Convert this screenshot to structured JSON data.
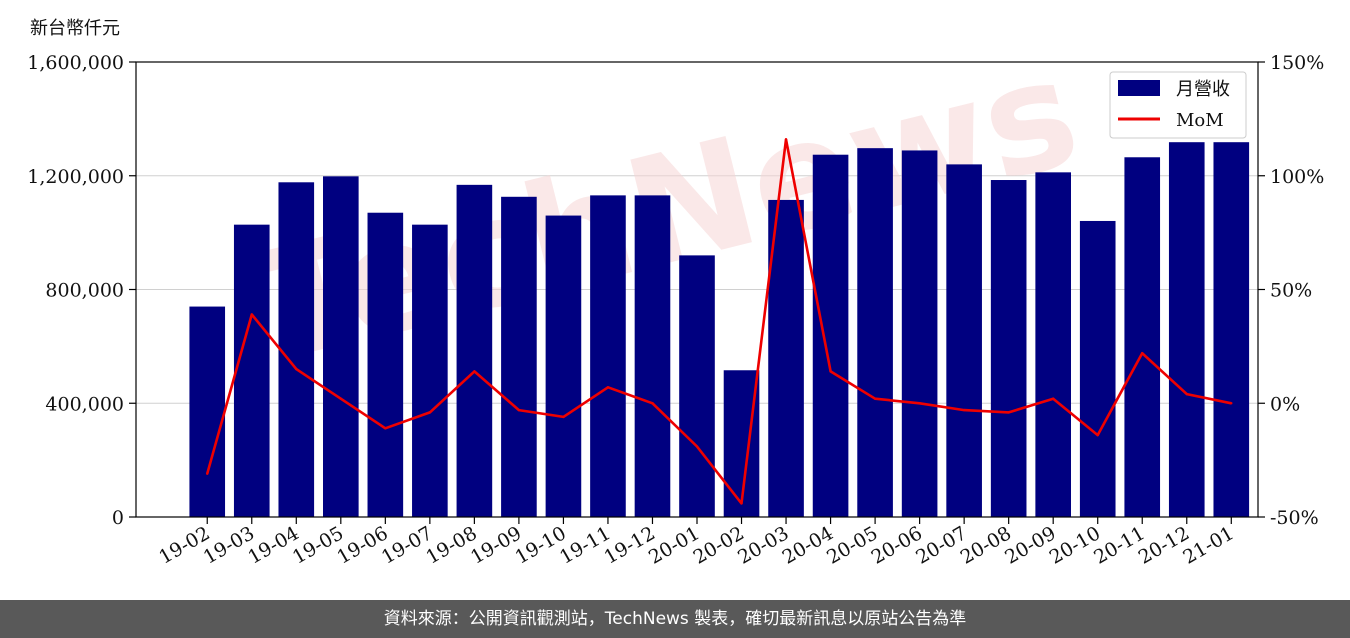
{
  "unit_label": "新台幣仟元",
  "footer": "資料來源：公開資訊觀測站，TechNews 製表，確切最新訊息以原站公告為準",
  "watermark": "TechNews",
  "colors": {
    "bar": "#000080",
    "line": "#ee0000",
    "grid": "#d0d0d0",
    "footer_bg": "#595959"
  },
  "chart_data": {
    "type": "bar+line",
    "categories": [
      "19-02",
      "19-03",
      "19-04",
      "19-05",
      "19-06",
      "19-07",
      "19-08",
      "19-09",
      "19-10",
      "19-11",
      "19-12",
      "20-01",
      "20-02",
      "20-03",
      "20-04",
      "20-05",
      "20-06",
      "20-07",
      "20-08",
      "20-09",
      "20-10",
      "20-11",
      "20-12",
      "21-01"
    ],
    "series": [
      {
        "name": "月營收",
        "axis": "left",
        "kind": "bar",
        "values": [
          740000,
          1028000,
          1177000,
          1198000,
          1070000,
          1028000,
          1168000,
          1126000,
          1060000,
          1131000,
          1131000,
          920000,
          516000,
          1115000,
          1274000,
          1297000,
          1289000,
          1240000,
          1185000,
          1212000,
          1041000,
          1265000,
          1318000,
          1318000
        ]
      },
      {
        "name": "MoM",
        "axis": "right",
        "kind": "line",
        "values": [
          -31,
          39,
          15,
          2,
          -11,
          -4,
          14,
          -3,
          -6,
          7,
          0,
          -19,
          -44,
          116,
          14,
          2,
          0,
          -3,
          -4,
          2,
          -14,
          22,
          4,
          0
        ]
      }
    ],
    "left_axis": {
      "ylim": [
        0,
        1600000
      ],
      "ticks": [
        0,
        400000,
        800000,
        1200000,
        1600000
      ],
      "tick_labels": [
        "0",
        "400,000",
        "800,000",
        "1,200,000",
        "1,600,000"
      ]
    },
    "right_axis": {
      "ylim": [
        -50,
        150
      ],
      "ticks": [
        -50,
        0,
        50,
        100,
        150
      ],
      "tick_labels": [
        "-50%",
        "0%",
        "50%",
        "100%",
        "150%"
      ]
    },
    "legend": "top-right",
    "grid": true
  }
}
